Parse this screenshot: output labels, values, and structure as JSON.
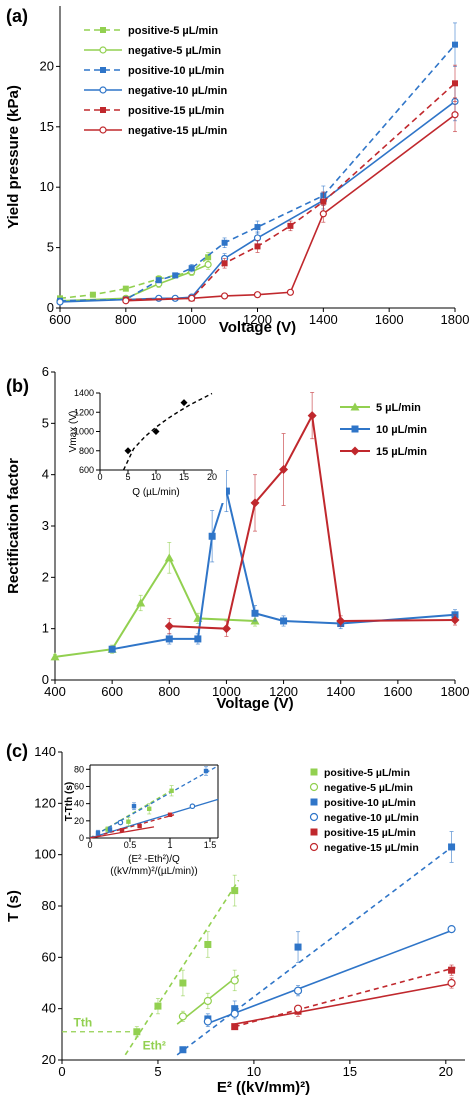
{
  "figure": {
    "panels": [
      {
        "id": "a",
        "label": "(a)",
        "chart_data": {
          "type": "line",
          "xlabel": "Voltage (V)",
          "ylabel": "Yield pressure (kPa)",
          "xlim": [
            600,
            1800
          ],
          "ylim": [
            0,
            25
          ],
          "xticks": [
            600,
            800,
            1000,
            1200,
            1400,
            1600,
            1800
          ],
          "yticks": [
            0,
            5,
            10,
            15,
            20
          ],
          "legend_position": "top-left",
          "series": [
            {
              "name": "positive-5 µL/min",
              "color": "#92d050",
              "dash": true,
              "marker": "square-filled",
              "x": [
                600,
                700,
                800,
                900,
                1000,
                1050
              ],
              "y": [
                0.8,
                1.1,
                1.6,
                2.4,
                3.0,
                4.2
              ],
              "err": [
                0.1,
                0.1,
                0.2,
                0.3,
                0.3,
                0.4
              ]
            },
            {
              "name": "negative-5 µL/min",
              "color": "#92d050",
              "dash": false,
              "marker": "circle-open",
              "x": [
                600,
                800,
                900,
                1000,
                1050
              ],
              "y": [
                0.6,
                0.8,
                2.0,
                3.0,
                3.6
              ],
              "err": [
                0.1,
                0.1,
                0.3,
                0.3,
                0.4
              ]
            },
            {
              "name": "positive-10 µL/min",
              "color": "#2f75c8",
              "dash": true,
              "marker": "square-filled",
              "x": [
                600,
                800,
                900,
                950,
                1000,
                1100,
                1200,
                1400,
                1800
              ],
              "y": [
                0.6,
                0.7,
                2.3,
                2.7,
                3.3,
                5.4,
                6.7,
                9.3,
                21.8
              ],
              "err": [
                0.1,
                0.1,
                0.2,
                0.2,
                0.3,
                0.4,
                0.5,
                0.8,
                1.8
              ]
            },
            {
              "name": "negative-10 µL/min",
              "color": "#2f75c8",
              "dash": false,
              "marker": "circle-open",
              "x": [
                600,
                800,
                900,
                950,
                1000,
                1100,
                1200,
                1400,
                1800
              ],
              "y": [
                0.5,
                0.7,
                0.8,
                0.8,
                0.9,
                4.1,
                5.8,
                8.9,
                17.1
              ],
              "err": [
                0.1,
                0.1,
                0.1,
                0.1,
                0.1,
                0.4,
                0.5,
                0.7,
                1.6
              ]
            },
            {
              "name": "positive-15 µL/min",
              "color": "#c0282d",
              "dash": true,
              "marker": "square-filled",
              "x": [
                800,
                1000,
                1100,
                1200,
                1300,
                1400,
                1800
              ],
              "y": [
                0.7,
                0.8,
                3.7,
                5.1,
                6.8,
                8.8,
                18.6
              ],
              "err": [
                0.1,
                0.1,
                0.4,
                0.5,
                0.4,
                0.8,
                1.5
              ]
            },
            {
              "name": "negative-15 µL/min",
              "color": "#c0282d",
              "dash": false,
              "marker": "circle-open",
              "x": [
                800,
                1000,
                1100,
                1200,
                1300,
                1400,
                1800
              ],
              "y": [
                0.6,
                0.8,
                1.0,
                1.1,
                1.3,
                7.8,
                16.0
              ],
              "err": [
                0.1,
                0.1,
                0.1,
                0.1,
                0.1,
                0.7,
                1.4
              ]
            }
          ]
        }
      },
      {
        "id": "b",
        "label": "(b)",
        "chart_data": {
          "type": "line",
          "xlabel": "Voltage (V)",
          "ylabel": "Rectification factor",
          "xlim": [
            400,
            1800
          ],
          "ylim": [
            0,
            6
          ],
          "xticks": [
            400,
            600,
            800,
            1000,
            1200,
            1400,
            1600,
            1800
          ],
          "yticks": [
            0,
            1,
            2,
            3,
            4,
            5,
            6
          ],
          "legend_position": "right",
          "series": [
            {
              "name": "5 µL/min",
              "color": "#92d050",
              "marker": "triangle",
              "x": [
                400,
                600,
                700,
                800,
                900,
                1100
              ],
              "y": [
                0.45,
                0.6,
                1.5,
                2.38,
                1.2,
                1.15
              ],
              "err": [
                0.05,
                0.08,
                0.15,
                0.3,
                0.1,
                0.1
              ]
            },
            {
              "name": "10 µL/min",
              "color": "#2f75c8",
              "marker": "square",
              "x": [
                600,
                800,
                900,
                950,
                1000,
                1100,
                1200,
                1400,
                1800
              ],
              "y": [
                0.6,
                0.8,
                0.8,
                2.8,
                3.68,
                1.3,
                1.15,
                1.1,
                1.27
              ],
              "err": [
                0.05,
                0.1,
                0.1,
                0.5,
                0.4,
                0.15,
                0.1,
                0.1,
                0.1
              ]
            },
            {
              "name": "15 µL/min",
              "color": "#c0282d",
              "marker": "diamond",
              "x": [
                800,
                1000,
                1100,
                1200,
                1300,
                1400,
                1800
              ],
              "y": [
                1.05,
                1.0,
                3.45,
                4.1,
                5.15,
                1.15,
                1.17
              ],
              "err": [
                0.15,
                0.15,
                0.55,
                0.7,
                0.45,
                0.1,
                0.1
              ]
            }
          ],
          "inset": {
            "type": "scatter",
            "xlabel": "Q (µL/min)",
            "ylabel": "Vmax (V)",
            "xlim": [
              0,
              20
            ],
            "ylim": [
              600,
              1400
            ],
            "xticks": [
              0,
              5,
              10,
              15,
              20
            ],
            "yticks": [
              600,
              800,
              1000,
              1200,
              1400
            ],
            "points": {
              "x": [
                5,
                10,
                15
              ],
              "y": [
                800,
                1000,
                1300
              ]
            },
            "fit": {
              "x": [
                4.2,
                6,
                8,
                10,
                12,
                14,
                16,
                18,
                20
              ],
              "y": [
                600,
                820,
                945,
                1045,
                1130,
                1205,
                1275,
                1335,
                1395
              ]
            }
          }
        }
      },
      {
        "id": "c",
        "label": "(c)",
        "chart_data": {
          "type": "scatter",
          "xlabel": "E² ((kV/mm)²)",
          "ylabel": "T (s)",
          "xlim": [
            0,
            21
          ],
          "ylim": [
            20,
            140
          ],
          "xticks": [
            0,
            5,
            10,
            15,
            20
          ],
          "yticks": [
            20,
            40,
            60,
            80,
            100,
            120,
            140
          ],
          "legend_position": "top-right",
          "annotations": [
            {
              "text": "Tth",
              "x": 0.6,
              "y": 33
            },
            {
              "text": "Eth²",
              "x": 4.2,
              "y": 24
            }
          ],
          "threshold": {
            "T": 31,
            "E2": 3.9
          },
          "series": [
            {
              "name": "positive-5 µL/min",
              "color": "#92d050",
              "marker": "square-filled",
              "dash": true,
              "x": [
                3.9,
                5.0,
                6.3,
                7.6,
                9.0
              ],
              "y": [
                31,
                41,
                50,
                65,
                86
              ],
              "err": [
                2,
                3,
                5,
                5,
                6
              ],
              "fit": [
                [
                  3.3,
                  22
                ],
                [
                  9.2,
                  90
                ]
              ]
            },
            {
              "name": "negative-5 µL/min",
              "color": "#92d050",
              "marker": "circle-open",
              "dash": false,
              "x": [
                6.3,
                7.6,
                9.0
              ],
              "y": [
                37,
                43,
                51
              ],
              "err": [
                2,
                3,
                4
              ],
              "fit": [
                [
                  6.0,
                  34
                ],
                [
                  9.2,
                  53
                ]
              ]
            },
            {
              "name": "positive-10 µL/min",
              "color": "#2f75c8",
              "marker": "square-filled",
              "dash": true,
              "x": [
                6.3,
                7.6,
                9.0,
                12.3,
                20.3
              ],
              "y": [
                24,
                36,
                40,
                64,
                103
              ],
              "err": [
                1,
                2,
                3,
                6,
                6
              ],
              "fit": [
                [
                  6.0,
                  22
                ],
                [
                  20.5,
                  104
                ]
              ]
            },
            {
              "name": "negative-10 µL/min",
              "color": "#2f75c8",
              "marker": "circle-open",
              "dash": false,
              "x": [
                7.6,
                9.0,
                12.3,
                20.3
              ],
              "y": [
                35,
                38,
                47,
                71
              ],
              "err": [
                2,
                2,
                2,
                1
              ],
              "fit": [
                [
                  7.5,
                  34
                ],
                [
                  20.5,
                  71
                ]
              ]
            },
            {
              "name": "positive-15 µL/min",
              "color": "#c0282d",
              "marker": "square-filled",
              "dash": true,
              "x": [
                9.0,
                12.3,
                20.3
              ],
              "y": [
                33,
                39,
                55
              ],
              "err": [
                1,
                2,
                2
              ],
              "fit": [
                [
                  9.0,
                  33
                ],
                [
                  20.5,
                  56
                ]
              ]
            },
            {
              "name": "negative-15 µL/min",
              "color": "#c0282d",
              "marker": "circle-open",
              "dash": false,
              "x": [
                12.3,
                20.3
              ],
              "y": [
                40,
                50
              ],
              "err": [
                1,
                2
              ],
              "fit": [
                [
                  9.0,
                  34
                ],
                [
                  20.5,
                  50
                ]
              ]
            }
          ],
          "inset": {
            "type": "scatter",
            "xlabel_line1": "(E² -Eth²)/Q",
            "xlabel_line2": "((kV/mm)²/(µL/min))",
            "ylabel": "T-Tth (s)",
            "xlim": [
              0,
              1.6
            ],
            "ylim": [
              0,
              85
            ],
            "xticks": [
              0,
              0.5,
              1,
              1.5
            ],
            "xticklabels": [
              "0",
              "0.5",
              "1",
              "1.5"
            ],
            "yticks": [
              0,
              20,
              40,
              60,
              80
            ],
            "series": [
              {
                "color": "#92d050",
                "marker": "square-filled",
                "x": [
                  0.22,
                  0.48,
                  0.74,
                  1.02
                ],
                "y": [
                  10,
                  19,
                  34,
                  55
                ],
                "err": [
                  3,
                  5,
                  6,
                  6
                ]
              },
              {
                "color": "#2f75c8",
                "marker": "square-filled",
                "x": [
                  0.1,
                  0.25,
                  0.55,
                  1.45
                ],
                "y": [
                  6,
                  10,
                  37,
                  78
                ],
                "err": [
                  3,
                  3,
                  4,
                  5
                ]
              },
              {
                "color": "#2f75c8",
                "marker": "circle-open",
                "x": [
                  0.38,
                  1.28
                ],
                "y": [
                  18,
                  37
                ],
                "err": [
                  2,
                  2
                ]
              },
              {
                "color": "#c0282d",
                "marker": "square-filled",
                "x": [
                  0.4,
                  0.62,
                  1.0
                ],
                "y": [
                  9,
                  14,
                  27
                ],
                "err": [
                  2,
                  2,
                  2
                ]
              }
            ],
            "fits": [
              {
                "color": "#92d050",
                "dash": true,
                "from": [
                  0,
                  0
                ],
                "to": [
                  1.05,
                  57
                ]
              },
              {
                "color": "#2f75c8",
                "dash": true,
                "from": [
                  0,
                  0
                ],
                "to": [
                  1.6,
                  84
                ]
              },
              {
                "color": "#2f75c8",
                "dash": false,
                "from": [
                  0,
                  0
                ],
                "to": [
                  1.6,
                  45
                ]
              },
              {
                "color": "#c0282d",
                "dash": false,
                "from": [
                  0,
                  0
                ],
                "to": [
                  0.8,
                  13
                ]
              },
              {
                "color": "#c0282d",
                "dash": true,
                "from": [
                  0,
                  0
                ],
                "to": [
                  1.05,
                  27
                ]
              }
            ]
          }
        }
      }
    ]
  }
}
